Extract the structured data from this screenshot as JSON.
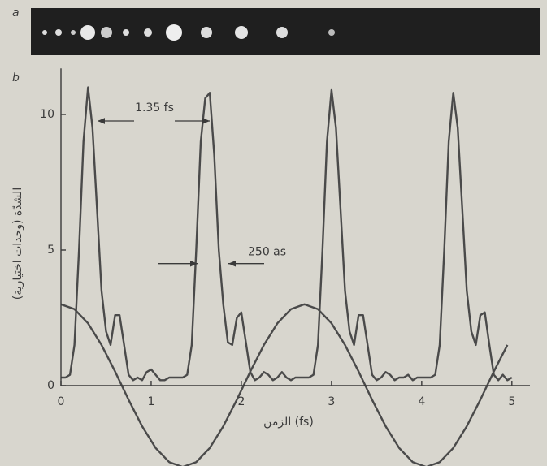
{
  "chart_data": {
    "type": "line",
    "panel_labels": [
      "a",
      "b"
    ],
    "ylabel": "الشدّة (وحدات اختيارية)",
    "xlabel": "الزمن (fs)",
    "annotations": [
      "1.35 fs",
      "250 as"
    ],
    "xlim": [
      0,
      5.2
    ],
    "ylim": [
      -2.85,
      11.7
    ],
    "xticks": [
      0,
      1,
      2,
      3,
      4,
      5
    ],
    "yticks": [
      0,
      5,
      10
    ],
    "series": [
      {
        "color": "#4a4a4a",
        "x": [
          0,
          0.05,
          0.1,
          0.15,
          0.2,
          0.25,
          0.3,
          0.35,
          0.4,
          0.45,
          0.5,
          0.55,
          0.6,
          0.65,
          0.7,
          0.75,
          0.8,
          0.85,
          0.9,
          0.95,
          1,
          1.05,
          1.1,
          1.15,
          1.2,
          1.25,
          1.3,
          1.35,
          1.4,
          1.45,
          1.5,
          1.55,
          1.6,
          1.65,
          1.7,
          1.75,
          1.8,
          1.85,
          1.9,
          1.95,
          2,
          2.05,
          2.1,
          2.15,
          2.2,
          2.25,
          2.3,
          2.35,
          2.4,
          2.45,
          2.5,
          2.55,
          2.6,
          2.65,
          2.7,
          2.75,
          2.8,
          2.85,
          2.9,
          2.95,
          3,
          3.05,
          3.1,
          3.15,
          3.2,
          3.25,
          3.3,
          3.35,
          3.4,
          3.45,
          3.5,
          3.55,
          3.6,
          3.65,
          3.7,
          3.75,
          3.8,
          3.85,
          3.9,
          3.95,
          4,
          4.05,
          4.1,
          4.15,
          4.2,
          4.25,
          4.3,
          4.35,
          4.4,
          4.45,
          4.5,
          4.55,
          4.6,
          4.65,
          4.7,
          4.75,
          4.8,
          4.85,
          4.9,
          4.95,
          5
        ],
        "values": [
          0.3,
          0.3,
          0.4,
          1.5,
          5,
          9,
          11,
          9.5,
          6.5,
          3.5,
          2,
          1.5,
          2.6,
          2.6,
          1.5,
          0.4,
          0.2,
          0.3,
          0.2,
          0.5,
          0.6,
          0.4,
          0.2,
          0.2,
          0.3,
          0.3,
          0.3,
          0.3,
          0.4,
          1.5,
          5,
          9,
          10.6,
          10.8,
          8.5,
          5,
          3,
          1.6,
          1.5,
          2.5,
          2.7,
          1.6,
          0.5,
          0.2,
          0.3,
          0.5,
          0.4,
          0.2,
          0.3,
          0.5,
          0.3,
          0.2,
          0.3,
          0.3,
          0.3,
          0.3,
          0.4,
          1.5,
          5,
          9,
          10.9,
          9.5,
          6.5,
          3.5,
          2,
          1.5,
          2.6,
          2.6,
          1.5,
          0.4,
          0.2,
          0.3,
          0.5,
          0.4,
          0.2,
          0.3,
          0.3,
          0.4,
          0.2,
          0.3,
          0.3,
          0.3,
          0.3,
          0.4,
          1.5,
          5,
          9,
          10.8,
          9.5,
          6.5,
          3.5,
          2,
          1.5,
          2.6,
          2.7,
          1.5,
          0.4,
          0.2,
          0.4,
          0.2,
          0.3
        ]
      },
      {
        "color": "#4a4a4a",
        "x": [
          0,
          0.15,
          0.3,
          0.45,
          0.6,
          0.75,
          0.9,
          1.05,
          1.2,
          1.35,
          1.5,
          1.65,
          1.8,
          1.95,
          2.1,
          2.25,
          2.4,
          2.55,
          2.7,
          2.85,
          3,
          3.15,
          3.3,
          3.45,
          3.6,
          3.75,
          3.9,
          4.05,
          4.2,
          4.35,
          4.5,
          4.65,
          4.8,
          4.95
        ],
        "values": [
          3,
          2.82,
          2.3,
          1.5,
          0.52,
          -0.52,
          -1.5,
          -2.3,
          -2.82,
          -3,
          -2.82,
          -2.3,
          -1.5,
          -0.52,
          0.52,
          1.5,
          2.3,
          2.82,
          3,
          2.82,
          2.3,
          1.5,
          0.52,
          -0.52,
          -1.5,
          -2.3,
          -2.82,
          -3,
          -2.82,
          -2.3,
          -1.5,
          -0.52,
          0.52,
          1.5
        ]
      }
    ]
  }
}
